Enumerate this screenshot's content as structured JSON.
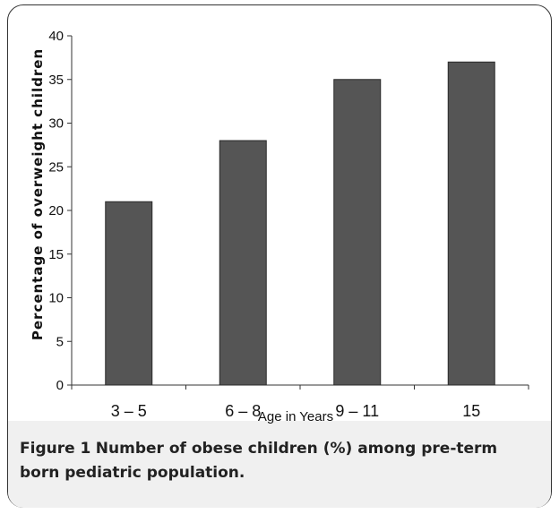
{
  "chart_data": {
    "type": "bar",
    "categories": [
      "3 – 5",
      "6 – 8",
      "9 – 11",
      "15"
    ],
    "values": [
      21,
      28,
      35,
      37
    ],
    "xlabel": "Age in Years",
    "ylabel": "Percentage of overweight children",
    "ylim": [
      0,
      40
    ],
    "yticks": [
      0,
      5,
      10,
      15,
      20,
      25,
      30,
      35,
      40
    ],
    "grid": false,
    "legend": "none",
    "bar_color": "#555555"
  },
  "caption": {
    "label": "Figure 1",
    "text": "Number of obese children (%) among pre-term born pediatric population."
  }
}
